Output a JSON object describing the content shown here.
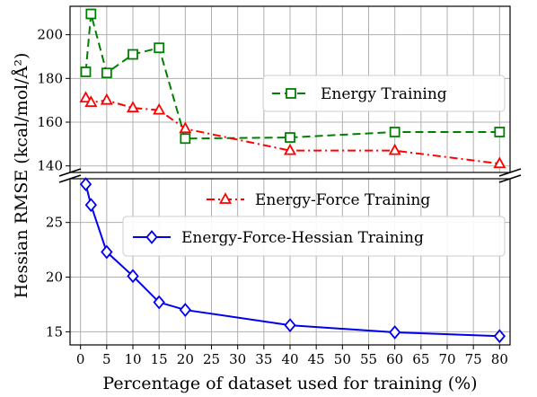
{
  "chart_data": {
    "type": "line",
    "xlabel": "Percentage of dataset used for training (%)",
    "ylabel": "Hessian RMSE (kcal/mol/Å²)",
    "x_ticks": [
      0,
      5,
      10,
      15,
      20,
      25,
      30,
      35,
      40,
      45,
      50,
      55,
      60,
      65,
      70,
      75,
      80
    ],
    "x_tick_labels": [
      "0",
      "5",
      "10",
      "15",
      "20",
      "25",
      "30",
      "35",
      "40",
      "45",
      "50",
      "55",
      "60",
      "65",
      "70",
      "75",
      "80"
    ],
    "xlim": [
      -2,
      82
    ],
    "broken_y_axis": true,
    "grid": true,
    "panels": [
      {
        "name": "upper",
        "ylim": [
          137,
          213
        ],
        "y_ticks": [
          140,
          160,
          180,
          200
        ],
        "y_tick_labels": [
          "140",
          "160",
          "180",
          "200"
        ]
      },
      {
        "name": "lower",
        "ylim": [
          13.8,
          29
        ],
        "y_ticks": [
          15,
          20,
          25
        ],
        "y_tick_labels": [
          "15",
          "20",
          "25"
        ]
      }
    ],
    "series": [
      {
        "name": "Energy Training",
        "panel": "upper",
        "color": "#008000",
        "line_style": "dashed",
        "marker": "square",
        "x": [
          1,
          2,
          5,
          10,
          15,
          20,
          40,
          60,
          80
        ],
        "y": [
          183,
          209.5,
          182.5,
          191,
          194,
          152.5,
          153,
          155.5,
          155.5
        ]
      },
      {
        "name": "Energy-Force Training",
        "panel": "upper",
        "color": "#ff0000",
        "line_style": "dashdot",
        "marker": "triangle",
        "x": [
          1,
          2,
          5,
          10,
          15,
          20,
          40,
          60,
          80
        ],
        "y": [
          171,
          169,
          170,
          166.5,
          165.5,
          157,
          147,
          147,
          141
        ]
      },
      {
        "name": "Energy-Force-Hessian Training",
        "panel": "lower",
        "color": "#0000ee",
        "line_style": "solid",
        "marker": "diamond",
        "x": [
          1,
          2,
          5,
          10,
          15,
          20,
          40,
          60,
          80
        ],
        "y": [
          28.5,
          26.6,
          22.3,
          20.1,
          17.7,
          17.0,
          15.6,
          14.95,
          14.6
        ]
      }
    ],
    "legend": [
      {
        "label": "Energy Training",
        "series": 0,
        "placement": "upper panel, right"
      },
      {
        "label": "Energy-Force Training",
        "series": 1,
        "placement": "lower panel, top-right"
      },
      {
        "label": "Energy-Force-Hessian Training",
        "series": 2,
        "placement": "lower panel, top-right"
      }
    ]
  }
}
